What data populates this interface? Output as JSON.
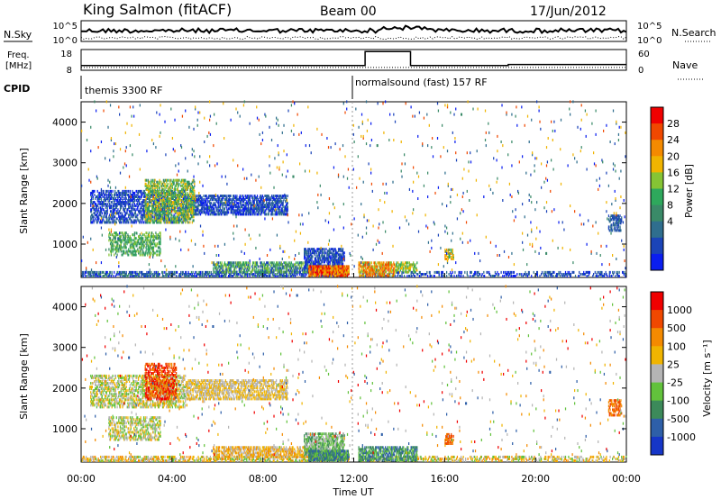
{
  "header": {
    "station": "King Salmon (fitACF)",
    "beam": "Beam 00",
    "date": "17/Jun/2012"
  },
  "status_panels": {
    "nsky_label": "N.Sky",
    "nsky_ticks": [
      "10^5",
      "10^0"
    ],
    "nsearch_label": "N.Search",
    "nsearch_ticks": [
      "10^5",
      "10^0"
    ],
    "freq_label": "Freq.",
    "freq_unit": "[MHz]",
    "freq_ticks": [
      "18",
      "8"
    ],
    "nave_label": "Nave",
    "nave_ticks": [
      "60",
      "0"
    ],
    "cpid_label": "CPID",
    "cpid_segments": [
      {
        "label": "themis 3300 RF",
        "start_hour": 0
      },
      {
        "label": "normalsound (fast) 157 RF",
        "start_hour": 12
      }
    ]
  },
  "chart_data": [
    {
      "type": "heatmap",
      "name": "power",
      "ylabel": "Slant Range [km]",
      "ylim": [
        180,
        4500
      ],
      "yticks": [
        "1000",
        "2000",
        "3000",
        "4000"
      ],
      "xlim_hours": [
        0,
        24
      ],
      "colorbar": {
        "label": "Power [dB]",
        "tick_labels": [
          "4",
          "8",
          "12",
          "16",
          "20",
          "24",
          "28"
        ],
        "colors": [
          "#0a1ef0",
          "#1b44b8",
          "#2f6e8e",
          "#3a8a68",
          "#2ea85c",
          "#86c434",
          "#f0b400",
          "#f48a00",
          "#f04800",
          "#f00000"
        ]
      },
      "scatter_regions": [
        {
          "h0": 0.0,
          "h1": 11.8,
          "r0": 180,
          "r1": 330,
          "density": 0.55,
          "colors": [
            "#1b44b8",
            "#0a1ef0",
            "#2f6e8e",
            "#3a8a68"
          ]
        },
        {
          "h0": 12.2,
          "h1": 24.0,
          "r0": 180,
          "r1": 330,
          "density": 0.35,
          "colors": [
            "#1b44b8",
            "#0a1ef0",
            "#2f6e8e"
          ]
        },
        {
          "h0": 5.8,
          "h1": 10.0,
          "r0": 280,
          "r1": 560,
          "density": 0.55,
          "colors": [
            "#2ea85c",
            "#3a8a68",
            "#86c434",
            "#1b44b8"
          ]
        },
        {
          "h0": 9.8,
          "h1": 11.6,
          "r0": 300,
          "r1": 900,
          "density": 0.6,
          "colors": [
            "#1b44b8",
            "#0a1ef0",
            "#2f6e8e"
          ]
        },
        {
          "h0": 10.0,
          "h1": 11.8,
          "r0": 190,
          "r1": 480,
          "density": 0.8,
          "colors": [
            "#f00000",
            "#f04800",
            "#f48a00",
            "#f0b400"
          ]
        },
        {
          "h0": 12.2,
          "h1": 13.8,
          "r0": 190,
          "r1": 560,
          "density": 0.6,
          "colors": [
            "#f48a00",
            "#f04800",
            "#f0b400",
            "#86c434"
          ]
        },
        {
          "h0": 13.8,
          "h1": 14.8,
          "r0": 280,
          "r1": 560,
          "density": 0.5,
          "colors": [
            "#f0b400",
            "#86c434",
            "#2ea85c"
          ]
        },
        {
          "h0": 0.4,
          "h1": 4.6,
          "r0": 1500,
          "r1": 2300,
          "density": 0.5,
          "colors": [
            "#1b44b8",
            "#2f6e8e",
            "#0a1ef0"
          ]
        },
        {
          "h0": 4.6,
          "h1": 9.1,
          "r0": 1700,
          "r1": 2200,
          "density": 0.6,
          "colors": [
            "#1b44b8",
            "#0a1ef0",
            "#2f6e8e"
          ]
        },
        {
          "h0": 2.8,
          "h1": 5.0,
          "r0": 1500,
          "r1": 2600,
          "density": 0.5,
          "colors": [
            "#86c434",
            "#2ea85c",
            "#f0b400",
            "#3a8a68"
          ]
        },
        {
          "h0": 1.2,
          "h1": 3.5,
          "r0": 700,
          "r1": 1300,
          "density": 0.4,
          "colors": [
            "#2ea85c",
            "#3a8a68",
            "#86c434"
          ]
        },
        {
          "h0": 16.0,
          "h1": 16.4,
          "r0": 600,
          "r1": 850,
          "density": 0.6,
          "colors": [
            "#f48a00",
            "#f0b400",
            "#2ea85c"
          ]
        },
        {
          "h0": 23.2,
          "h1": 23.8,
          "r0": 1300,
          "r1": 1700,
          "density": 0.4,
          "colors": [
            "#1b44b8",
            "#2f6e8e"
          ]
        },
        {
          "h0": 0.0,
          "h1": 24.0,
          "r0": 330,
          "r1": 4500,
          "density": 0.012,
          "colors": [
            "#1b44b8",
            "#0a1ef0",
            "#2f6e8e",
            "#3a8a68",
            "#f0b400",
            "#f04800"
          ]
        }
      ]
    },
    {
      "type": "heatmap",
      "name": "velocity",
      "ylabel": "Slant Range [km]",
      "ylim": [
        180,
        4500
      ],
      "yticks": [
        "1000",
        "2000",
        "3000",
        "4000"
      ],
      "xlim_hours": [
        0,
        24
      ],
      "colorbar": {
        "label": "Velocity [m s⁻¹]",
        "tick_labels": [
          "1000",
          "500",
          "100",
          "25",
          "-25",
          "-100",
          "-500",
          "-1000"
        ],
        "colors": [
          "#1636c8",
          "#2e5fa8",
          "#3c8a5a",
          "#62c23c",
          "#b4b4b4",
          "#f0b400",
          "#f48a00",
          "#f04800",
          "#f00000"
        ]
      },
      "scatter_regions": [
        {
          "h0": 0.0,
          "h1": 11.8,
          "r0": 180,
          "r1": 330,
          "density": 0.5,
          "colors": [
            "#f0b400",
            "#f48a00",
            "#b4b4b4",
            "#62c23c"
          ]
        },
        {
          "h0": 12.2,
          "h1": 24.0,
          "r0": 180,
          "r1": 330,
          "density": 0.35,
          "colors": [
            "#f0b400",
            "#b4b4b4",
            "#62c23c",
            "#f48a00"
          ]
        },
        {
          "h0": 5.8,
          "h1": 10.0,
          "r0": 280,
          "r1": 560,
          "density": 0.55,
          "colors": [
            "#f48a00",
            "#f0b400",
            "#b4b4b4"
          ]
        },
        {
          "h0": 9.8,
          "h1": 11.6,
          "r0": 300,
          "r1": 900,
          "density": 0.6,
          "colors": [
            "#b4b4b4",
            "#3c8a5a",
            "#62c23c"
          ]
        },
        {
          "h0": 10.0,
          "h1": 11.8,
          "r0": 190,
          "r1": 480,
          "density": 0.8,
          "colors": [
            "#3c8a5a",
            "#2e5fa8",
            "#62c23c"
          ]
        },
        {
          "h0": 12.2,
          "h1": 14.8,
          "r0": 190,
          "r1": 560,
          "density": 0.6,
          "colors": [
            "#3c8a5a",
            "#62c23c",
            "#2e5fa8"
          ]
        },
        {
          "h0": 0.4,
          "h1": 4.6,
          "r0": 1500,
          "r1": 2300,
          "density": 0.45,
          "colors": [
            "#b4b4b4",
            "#f0b400",
            "#62c23c"
          ]
        },
        {
          "h0": 4.6,
          "h1": 9.1,
          "r0": 1700,
          "r1": 2200,
          "density": 0.55,
          "colors": [
            "#b4b4b4",
            "#f0b400"
          ]
        },
        {
          "h0": 2.8,
          "h1": 4.2,
          "r0": 1700,
          "r1": 2600,
          "density": 0.5,
          "colors": [
            "#f00000",
            "#f04800",
            "#f48a00"
          ]
        },
        {
          "h0": 1.2,
          "h1": 3.5,
          "r0": 700,
          "r1": 1300,
          "density": 0.4,
          "colors": [
            "#b4b4b4",
            "#62c23c",
            "#f0b400"
          ]
        },
        {
          "h0": 16.0,
          "h1": 16.4,
          "r0": 600,
          "r1": 850,
          "density": 0.6,
          "colors": [
            "#f48a00",
            "#f04800"
          ]
        },
        {
          "h0": 23.2,
          "h1": 23.8,
          "r0": 1300,
          "r1": 1700,
          "density": 0.4,
          "colors": [
            "#f48a00",
            "#f04800"
          ]
        },
        {
          "h0": 0.0,
          "h1": 24.0,
          "r0": 330,
          "r1": 4500,
          "density": 0.012,
          "colors": [
            "#f00000",
            "#f48a00",
            "#62c23c",
            "#2e5fa8",
            "#b4b4b4",
            "#f0b400"
          ]
        }
      ]
    }
  ],
  "x_axis": {
    "label": "Time UT",
    "ticks": [
      "00:00",
      "04:00",
      "08:00",
      "12:00",
      "16:00",
      "20:00",
      "00:00"
    ]
  }
}
